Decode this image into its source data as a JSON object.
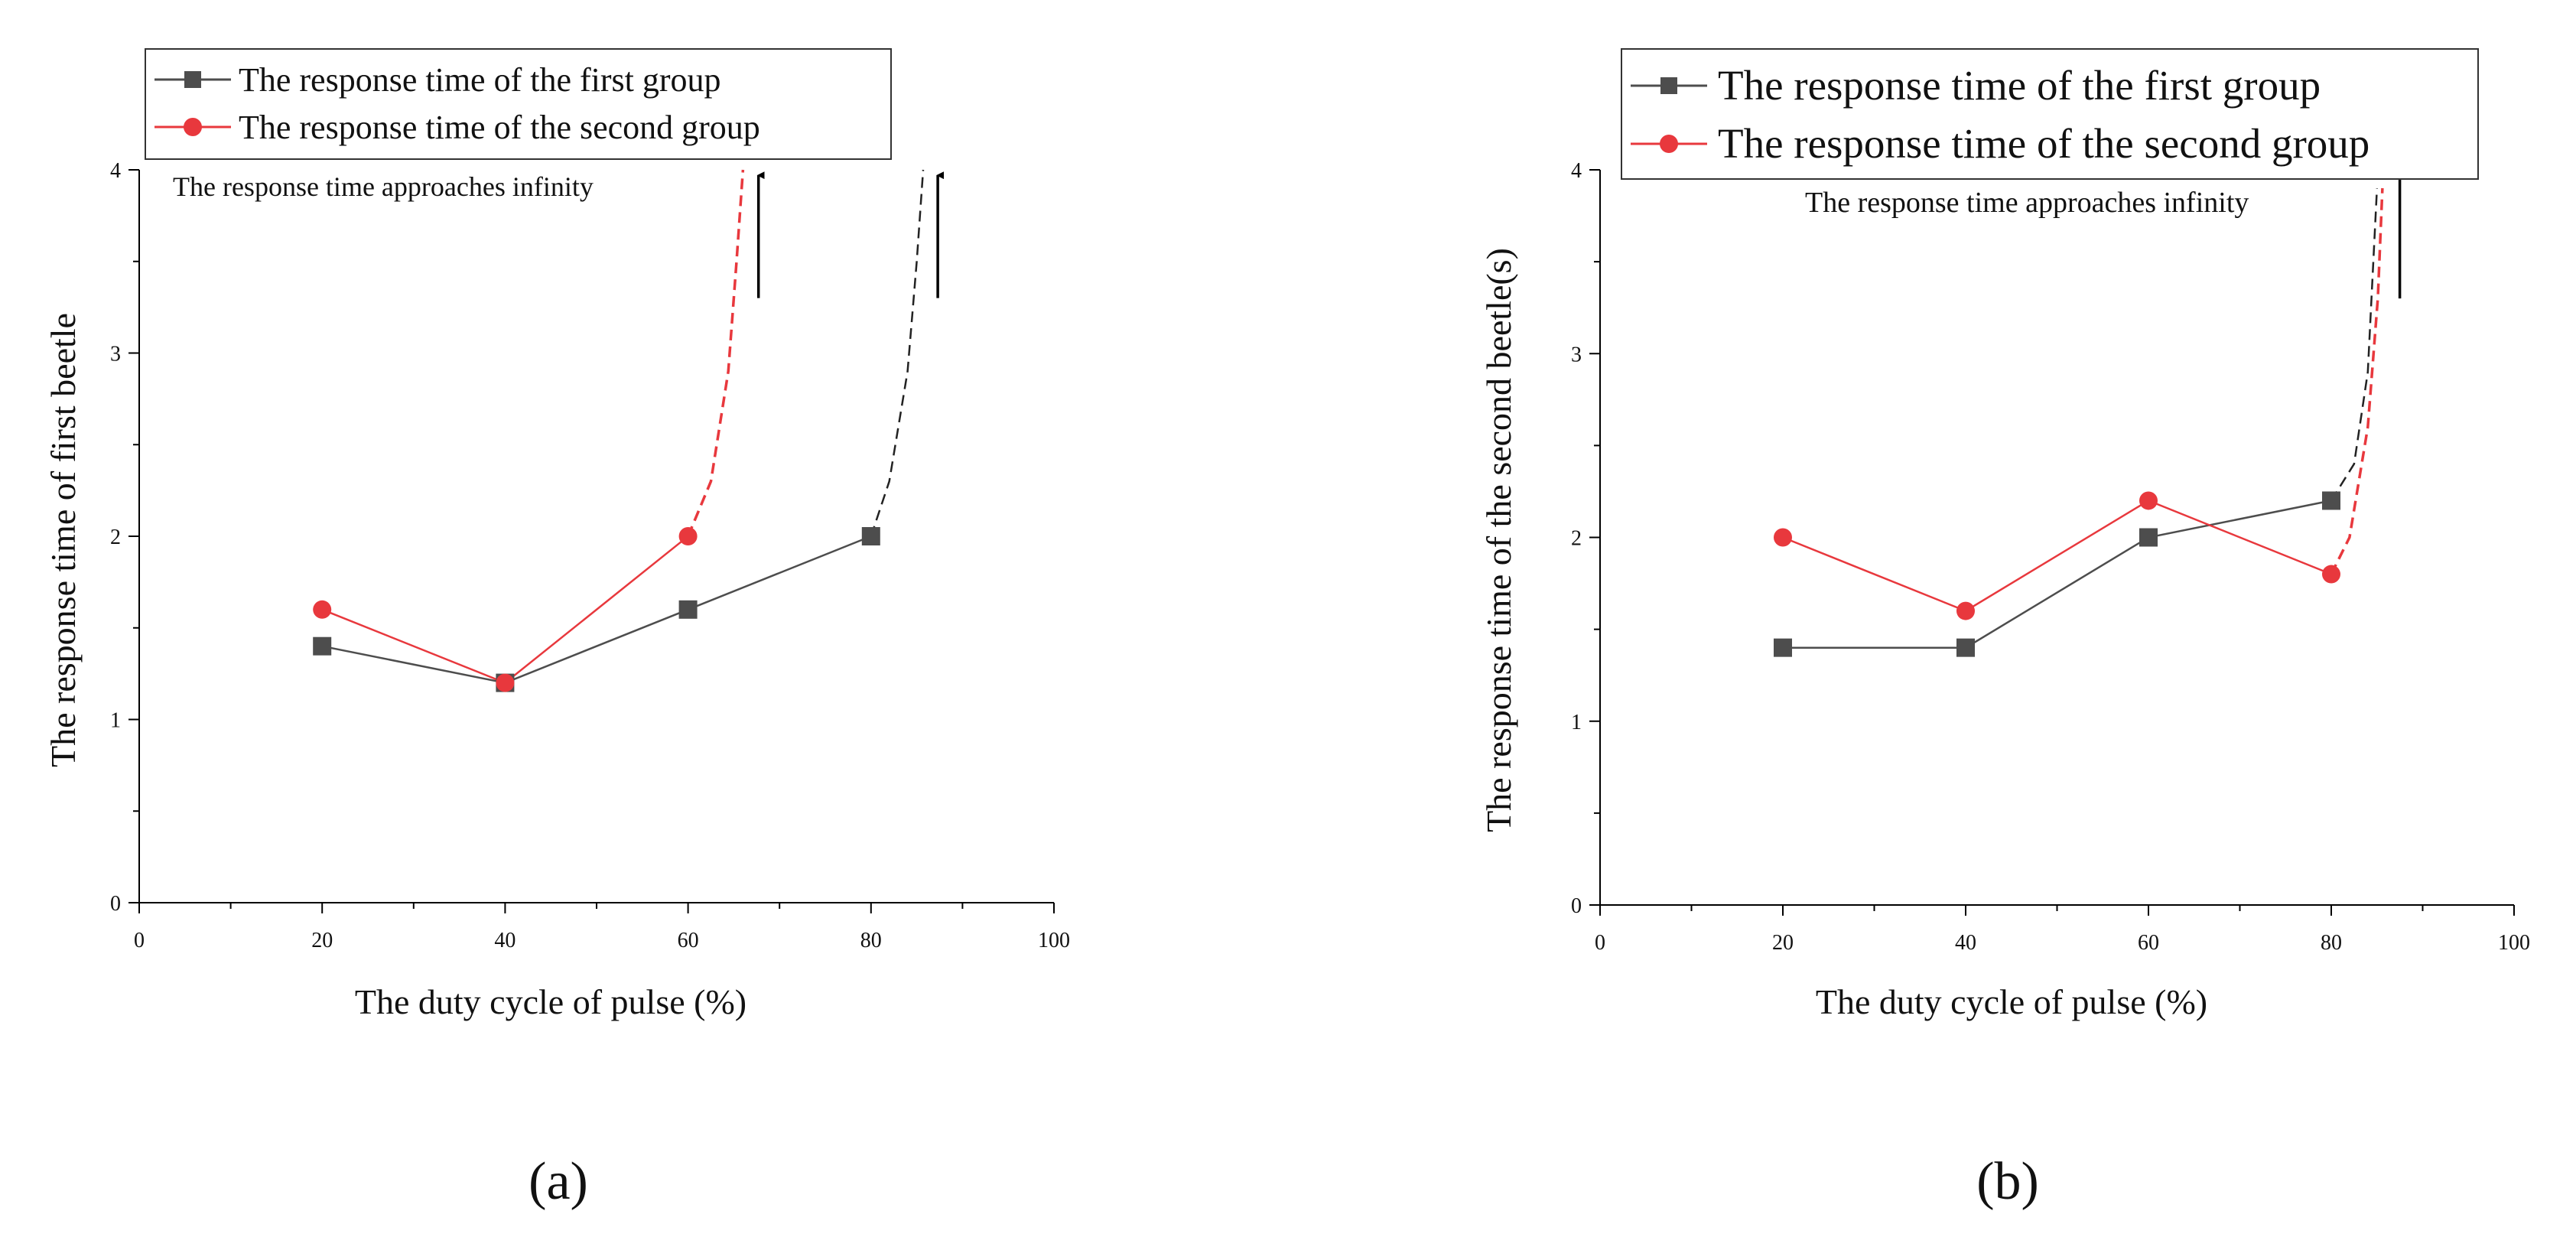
{
  "chart_data": [
    {
      "type": "line",
      "panel_label": "(a)",
      "xlabel": "The duty cycle of pulse (%)",
      "ylabel": "The response time of first beetle",
      "xlim": [
        0,
        100
      ],
      "ylim": [
        0,
        4
      ],
      "xticks": [
        0,
        20,
        40,
        60,
        80,
        100
      ],
      "yticks": [
        0,
        1,
        2,
        3,
        4
      ],
      "legend_position": "top-left",
      "series": [
        {
          "name": "The response time of the first group",
          "color": "#4d4d4d",
          "marker": "square",
          "x": [
            20,
            40,
            60,
            80
          ],
          "y": [
            1.4,
            1.2,
            1.6,
            2.0
          ],
          "asymptote": [
            [
              80,
              2.0
            ],
            [
              82,
              2.3
            ],
            [
              84,
              2.9
            ],
            [
              85,
              3.5
            ],
            [
              85.7,
              4.0
            ]
          ]
        },
        {
          "name": "The response time of the second group",
          "color": "#e8383d",
          "marker": "circle",
          "x": [
            20,
            40,
            60
          ],
          "y": [
            1.6,
            1.2,
            2.0
          ],
          "asymptote": [
            [
              60,
              2.0
            ],
            [
              62.5,
              2.3
            ],
            [
              64.4,
              2.9
            ],
            [
              65.3,
              3.5
            ],
            [
              66,
              4.0
            ]
          ]
        }
      ],
      "annotation": "The response time approaches infinity",
      "arrows": [
        {
          "x": 67.7,
          "y_from": 3.3,
          "y_to": 3.97
        },
        {
          "x": 87.3,
          "y_from": 3.3,
          "y_to": 3.97
        }
      ]
    },
    {
      "type": "line",
      "panel_label": "(b)",
      "xlabel": "The duty cycle of pulse (%)",
      "ylabel": "The response time of the second beetle(s)",
      "xlim": [
        0,
        100
      ],
      "ylim": [
        0,
        4
      ],
      "xticks": [
        0,
        20,
        40,
        60,
        80,
        100
      ],
      "yticks": [
        0,
        1,
        2,
        3,
        4
      ],
      "legend_position": "top-left",
      "series": [
        {
          "name": "The response time of the first group",
          "color": "#4d4d4d",
          "marker": "square",
          "x": [
            20,
            40,
            60,
            80
          ],
          "y": [
            1.4,
            1.4,
            2.0,
            2.2
          ],
          "asymptote": [
            [
              80,
              2.2
            ],
            [
              82.5,
              2.4
            ],
            [
              84,
              2.9
            ],
            [
              84.6,
              3.5
            ],
            [
              85,
              3.9
            ]
          ]
        },
        {
          "name": "The response time of the second group",
          "color": "#e8383d",
          "marker": "circle",
          "x": [
            20,
            40,
            60,
            80
          ],
          "y": [
            2.0,
            1.6,
            2.2,
            1.8
          ],
          "asymptote": [
            [
              80,
              1.8
            ],
            [
              82,
              2.0
            ],
            [
              84,
              2.6
            ],
            [
              85.1,
              3.3
            ],
            [
              85.6,
              3.9
            ]
          ]
        }
      ],
      "annotation": "The response time approaches infinity",
      "arrows": [
        {
          "x": 87.5,
          "y_from": 3.3,
          "y_to": 3.97
        }
      ]
    }
  ]
}
